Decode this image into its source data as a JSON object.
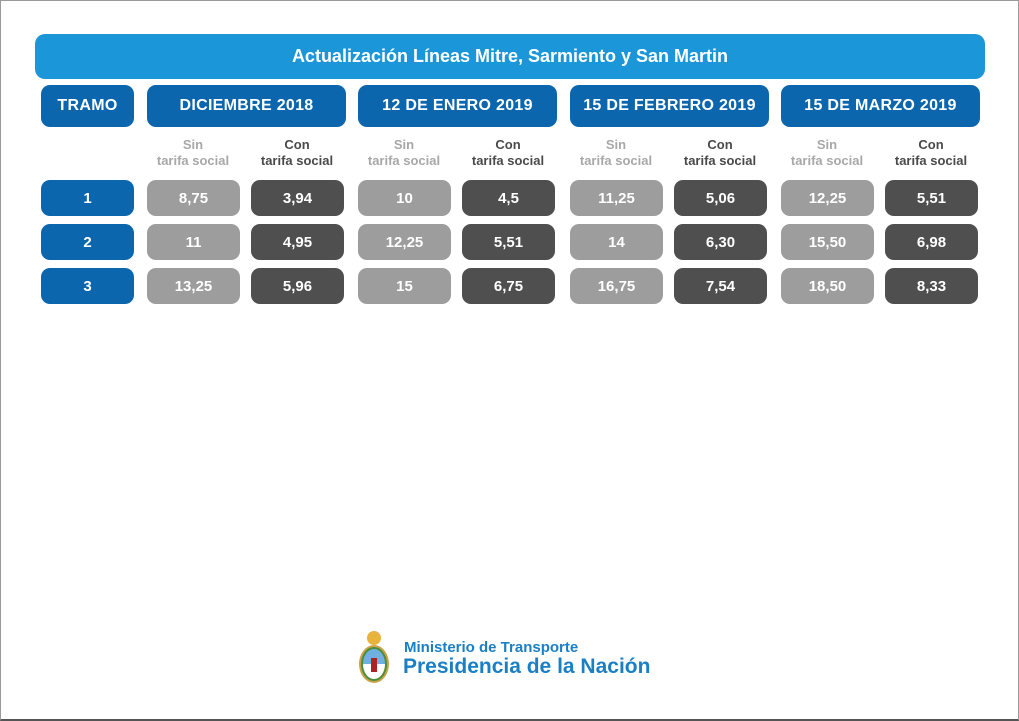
{
  "title": "Actualización Líneas Mitre, Sarmiento y San Martin",
  "tramo_header": "TRAMO",
  "periods": [
    {
      "label": "DICIEMBRE 2018",
      "sin": [
        "8,75",
        "11",
        "13,25"
      ],
      "con": [
        "3,94",
        "4,95",
        "5,96"
      ]
    },
    {
      "label": "12 DE ENERO 2019",
      "sin": [
        "10",
        "12,25",
        "15"
      ],
      "con": [
        "4,5",
        "5,51",
        "6,75"
      ]
    },
    {
      "label": "15 DE FEBRERO 2019",
      "sin": [
        "11,25",
        "14",
        "16,75"
      ],
      "con": [
        "5,06",
        "6,30",
        "7,54"
      ]
    },
    {
      "label": "15 DE MARZO 2019",
      "sin": [
        "12,25",
        "15,50",
        "18,50"
      ],
      "con": [
        "5,51",
        "6,98",
        "8,33"
      ]
    }
  ],
  "subheaders": {
    "sin_line1": "Sin",
    "sin_line2": "tarifa social",
    "con_line1": "Con",
    "con_line2": "tarifa social"
  },
  "tramos": [
    "1",
    "2",
    "3"
  ],
  "footer": {
    "ministerio": "Ministerio de Transporte",
    "presidencia": "Presidencia de la Nación"
  },
  "colors": {
    "banner": "#1b96d8",
    "header": "#0c66ad",
    "sin_cell": "#9d9d9e",
    "con_cell": "#4f4f50",
    "footer_text": "#1b7fc4"
  }
}
